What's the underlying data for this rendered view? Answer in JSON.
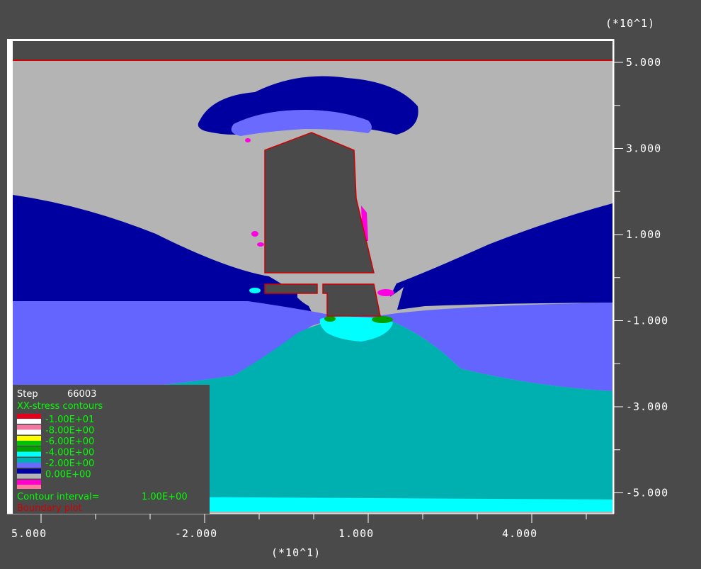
{
  "chart_data": {
    "type": "heatmap",
    "x_scale_label": "(*10^1)",
    "y_scale_label": "(*10^1)",
    "x_ticks": [
      "5.000",
      "-2.000",
      "1.000",
      "4.000"
    ],
    "y_ticks": [
      "5.000",
      "3.000",
      "1.000",
      "-1.000",
      "-3.000",
      "-5.000"
    ],
    "legend": {
      "step_label": "Step",
      "step_value": "66003",
      "title": "XX-stress contours",
      "levels": [
        {
          "value": "-1.00E+01",
          "colors": [
            "#e3001a",
            "#ffffff"
          ]
        },
        {
          "value": "-8.00E+00",
          "colors": [
            "#f277a0",
            "#ffffff"
          ]
        },
        {
          "value": "-6.00E+00",
          "colors": [
            "#ffff00",
            "#00c000"
          ]
        },
        {
          "value": "-4.00E+00",
          "colors": [
            "#00a000",
            "#00ffff"
          ]
        },
        {
          "value": "-2.00E+00",
          "colors": [
            "#00b0b0",
            "#6a6aff"
          ]
        },
        {
          "value": "0.00E+00",
          "colors": [
            "#0000a0",
            "#b4b4b4"
          ]
        }
      ],
      "extra_swatch_colors": [
        "#ff00cc",
        "#ff7aa0"
      ],
      "contour_interval_label": "Contour interval=",
      "contour_interval_value": "1.00E+00",
      "boundary_label": "Boundary plot"
    },
    "colors": {
      "background": "#4a4a4a",
      "plot_background": "#b4b4b4",
      "dark_blue": "#0000a0",
      "medium_blue": "#6464ff",
      "teal": "#00b0b0",
      "cyan": "#00ffff",
      "magenta": "#ff00e0",
      "green": "#00a000",
      "boundary": "#d00000",
      "void": "#4a4a4a",
      "legend_green_text": "#00ff00",
      "legend_red_text": "#d00000"
    }
  }
}
